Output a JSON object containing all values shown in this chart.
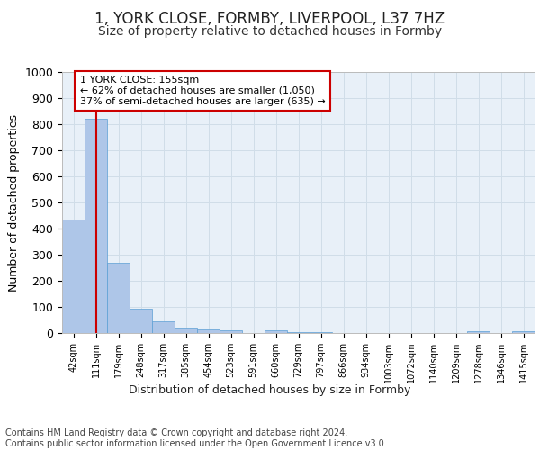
{
  "title": "1, YORK CLOSE, FORMBY, LIVERPOOL, L37 7HZ",
  "subtitle": "Size of property relative to detached houses in Formby",
  "xlabel": "Distribution of detached houses by size in Formby",
  "ylabel": "Number of detached properties",
  "categories": [
    "42sqm",
    "111sqm",
    "179sqm",
    "248sqm",
    "317sqm",
    "385sqm",
    "454sqm",
    "523sqm",
    "591sqm",
    "660sqm",
    "729sqm",
    "797sqm",
    "866sqm",
    "934sqm",
    "1003sqm",
    "1072sqm",
    "1140sqm",
    "1209sqm",
    "1278sqm",
    "1346sqm",
    "1415sqm"
  ],
  "values": [
    435,
    820,
    270,
    93,
    45,
    20,
    14,
    9,
    0,
    10,
    5,
    4,
    0,
    0,
    0,
    0,
    0,
    0,
    8,
    0,
    8
  ],
  "bar_color": "#aec6e8",
  "bar_edge_color": "#5a9fd4",
  "vline_x": 1,
  "vline_color": "#cc0000",
  "annotation_line1": "1 YORK CLOSE: 155sqm",
  "annotation_line2": "← 62% of detached houses are smaller (1,050)",
  "annotation_line3": "37% of semi-detached houses are larger (635) →",
  "annotation_box_color": "#ffffff",
  "annotation_box_edge": "#cc0000",
  "ylim": [
    0,
    1000
  ],
  "yticks": [
    0,
    100,
    200,
    300,
    400,
    500,
    600,
    700,
    800,
    900,
    1000
  ],
  "grid_color": "#d0dde8",
  "background_color": "#e8f0f8",
  "footer_text": "Contains HM Land Registry data © Crown copyright and database right 2024.\nContains public sector information licensed under the Open Government Licence v3.0.",
  "title_fontsize": 12,
  "subtitle_fontsize": 10,
  "xlabel_fontsize": 9,
  "ylabel_fontsize": 9,
  "footer_fontsize": 7
}
